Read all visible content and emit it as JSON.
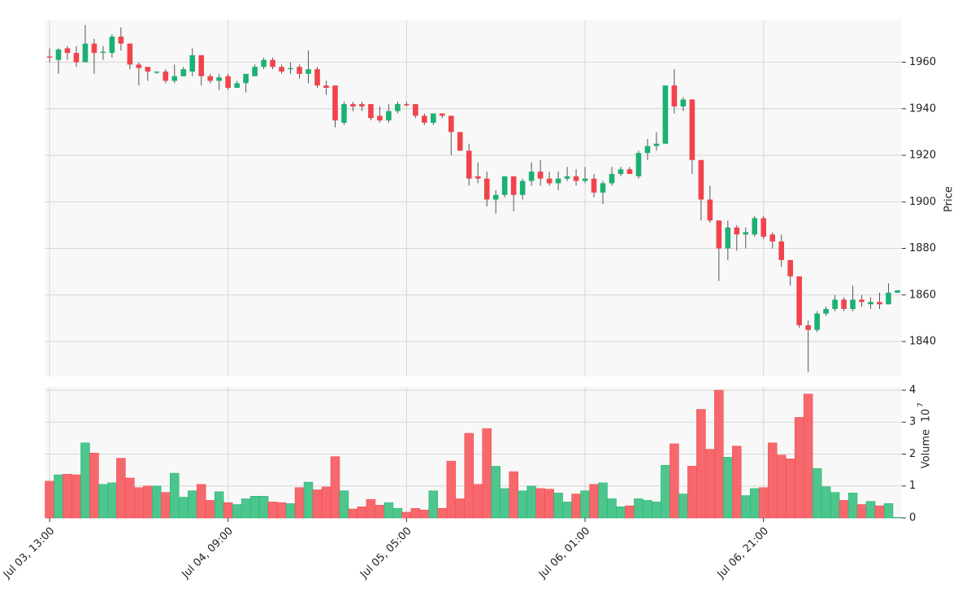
{
  "chart_data": {
    "type": "candlestick",
    "y_label": "Price",
    "volume_label": "Volume",
    "volume_scale": {
      "base": "10",
      "exponent": "7"
    },
    "up_color": "#1bb172",
    "down_color": "#f2434c",
    "up_volume_color": "#4cc68d",
    "down_volume_color": "#f7686c",
    "grid": true,
    "xlim": [
      -0.5,
      95.5
    ],
    "xticks": [
      {
        "value": 0,
        "label": "Jul 03, 13:00"
      },
      {
        "value": 20,
        "label": "Jul 04, 09:00"
      },
      {
        "value": 40,
        "label": "Jul 05, 05:00"
      },
      {
        "value": 60,
        "label": "Jul 06, 01:00"
      },
      {
        "value": 80,
        "label": "Jul 06, 21:00"
      }
    ],
    "ylim": [
      1825,
      1978
    ],
    "yticks": [
      1840,
      1860,
      1880,
      1900,
      1920,
      1940,
      1960
    ],
    "volume_ylim": [
      0,
      4.1
    ],
    "volume_yticks": [
      0,
      1,
      2,
      3,
      4
    ],
    "open": [
      1962.5,
      1961,
      1966,
      1964,
      1960,
      1968,
      1964,
      1964,
      1971,
      1968,
      1959,
      1958,
      1955.5,
      1956,
      1952,
      1954,
      1956,
      1963,
      1954,
      1952,
      1954,
      1949,
      1951,
      1954,
      1958,
      1961,
      1958,
      1957,
      1958,
      1955,
      1957,
      1950,
      1950,
      1934,
      1942,
      1942,
      1942,
      1937,
      1935,
      1939,
      1942,
      1942,
      1937,
      1934,
      1938,
      1937,
      1930,
      1922,
      1911,
      1910,
      1901,
      1903,
      1911,
      1903,
      1909,
      1913,
      1910,
      1908,
      1910,
      1911,
      1909,
      1910,
      1904,
      1908,
      1912,
      1914,
      1911,
      1921,
      1924,
      1925,
      1950,
      1941,
      1944,
      1918,
      1901,
      1892,
      1880,
      1889,
      1886,
      1886,
      1893,
      1886,
      1883,
      1875,
      1868,
      1847,
      1845,
      1852,
      1854,
      1858,
      1854,
      1858,
      1856,
      1857,
      1856,
      1861
    ],
    "high": [
      1966,
      1966,
      1967,
      1967,
      1976,
      1970,
      1967,
      1972,
      1975,
      1968,
      1960,
      1958,
      1956,
      1957,
      1959,
      1958,
      1966,
      1963,
      1955,
      1955,
      1955,
      1952,
      1955,
      1959,
      1962,
      1962,
      1959,
      1960,
      1959,
      1965,
      1958,
      1952,
      1950,
      1943,
      1943,
      1943,
      1942,
      1941,
      1942,
      1943,
      1943,
      1942,
      1938,
      1938,
      1938,
      1937,
      1930,
      1925,
      1917,
      1913,
      1905,
      1911,
      1911,
      1910,
      1917,
      1918,
      1913,
      1913,
      1915,
      1914,
      1915,
      1912,
      1909,
      1915,
      1915,
      1915,
      1922,
      1927,
      1930,
      1950,
      1957,
      1945,
      1944,
      1918,
      1907,
      1892,
      1892,
      1890,
      1889,
      1894,
      1894,
      1887,
      1886,
      1875,
      1868,
      1849,
      1853,
      1855,
      1860,
      1859,
      1864,
      1860,
      1859,
      1861,
      1865,
      1862
    ],
    "low": [
      1960,
      1955,
      1961,
      1958,
      1960,
      1955,
      1961,
      1962,
      1965,
      1957,
      1950,
      1952,
      1955,
      1951,
      1951,
      1954,
      1954,
      1950,
      1951,
      1948,
      1948,
      1949,
      1947,
      1954,
      1957,
      1957,
      1955,
      1955,
      1953,
      1951,
      1949,
      1946,
      1932,
      1933,
      1939,
      1939,
      1935,
      1934,
      1934,
      1938,
      1941,
      1936,
      1933,
      1933,
      1936,
      1920,
      1922,
      1907,
      1908,
      1898,
      1895,
      1902,
      1896,
      1901,
      1907,
      1907,
      1907,
      1905,
      1909,
      1907,
      1908,
      1902,
      1899,
      1907,
      1911,
      1912,
      1910,
      1918,
      1922,
      1925,
      1938,
      1939,
      1912,
      1892,
      1891,
      1866,
      1875,
      1879,
      1880,
      1885,
      1884,
      1880,
      1872,
      1864,
      1846,
      1827,
      1844,
      1851,
      1853,
      1853,
      1853,
      1855,
      1854,
      1854,
      1856,
      1861
    ],
    "close": [
      1962,
      1965.5,
      1964,
      1960,
      1968,
      1964,
      1964.5,
      1971,
      1968,
      1959,
      1957.5,
      1956,
      1956,
      1952,
      1954,
      1957,
      1963,
      1954,
      1952,
      1953.5,
      1949,
      1951,
      1955,
      1958,
      1961,
      1958,
      1956,
      1957.5,
      1955,
      1957,
      1950,
      1949,
      1935,
      1942,
      1941,
      1941,
      1936,
      1935,
      1939,
      1942,
      1941.5,
      1937,
      1934,
      1938,
      1937,
      1930,
      1922,
      1910,
      1910,
      1901,
      1903,
      1911,
      1903,
      1909,
      1913,
      1910,
      1908,
      1910,
      1911,
      1909,
      1910,
      1904,
      1908,
      1912,
      1914,
      1912,
      1921,
      1924,
      1925,
      1950,
      1941,
      1944,
      1918,
      1901,
      1892,
      1880,
      1889,
      1886,
      1887,
      1893,
      1885,
      1883,
      1875,
      1868,
      1847,
      1845,
      1852,
      1854,
      1858,
      1854,
      1858,
      1857,
      1857,
      1856,
      1861,
      1862
    ],
    "volume": [
      1.15,
      1.35,
      1.37,
      1.35,
      2.35,
      2.03,
      1.05,
      1.1,
      1.87,
      1.25,
      0.95,
      1.0,
      1.0,
      0.8,
      1.4,
      0.65,
      0.85,
      1.05,
      0.55,
      0.82,
      0.48,
      0.42,
      0.6,
      0.68,
      0.68,
      0.5,
      0.48,
      0.45,
      0.95,
      1.12,
      0.88,
      0.97,
      1.92,
      0.85,
      0.28,
      0.35,
      0.58,
      0.4,
      0.48,
      0.3,
      0.18,
      0.3,
      0.25,
      0.85,
      0.3,
      1.78,
      0.6,
      2.65,
      1.05,
      2.8,
      1.62,
      0.92,
      1.45,
      0.85,
      1.0,
      0.92,
      0.9,
      0.78,
      0.5,
      0.75,
      0.85,
      1.05,
      1.1,
      0.6,
      0.35,
      0.38,
      0.6,
      0.55,
      0.5,
      1.65,
      2.32,
      0.75,
      1.62,
      3.4,
      2.15,
      4.0,
      1.9,
      2.25,
      0.7,
      0.92,
      0.95,
      2.35,
      1.97,
      1.85,
      3.15,
      3.88,
      1.55,
      0.98,
      0.8,
      0.55,
      0.78,
      0.42,
      0.52,
      0.38,
      0.45,
      0.02
    ]
  }
}
